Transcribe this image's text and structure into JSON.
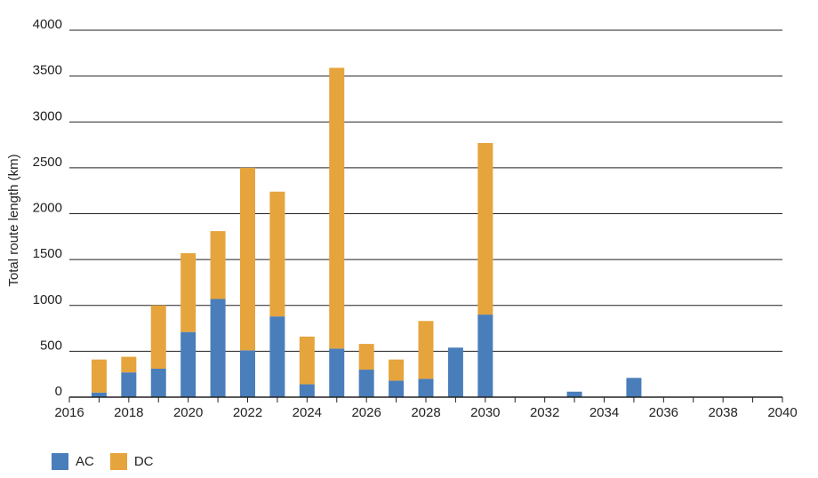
{
  "chart_data": {
    "type": "bar",
    "stacked": true,
    "title": "",
    "xlabel": "",
    "ylabel": "Total route length (km)",
    "x": [
      2017,
      2018,
      2019,
      2020,
      2021,
      2022,
      2023,
      2024,
      2025,
      2026,
      2027,
      2028,
      2029,
      2030,
      2033,
      2035
    ],
    "series": [
      {
        "name": "AC",
        "color": "#4a7ebb",
        "values": [
          50,
          270,
          310,
          710,
          1070,
          510,
          880,
          140,
          530,
          300,
          180,
          200,
          540,
          900,
          60,
          210
        ]
      },
      {
        "name": "DC",
        "color": "#e6a43c",
        "values": [
          360,
          170,
          690,
          860,
          740,
          1990,
          1360,
          520,
          3060,
          280,
          230,
          630,
          0,
          1870,
          0,
          0
        ]
      }
    ],
    "xlim": [
      2016,
      2040
    ],
    "xticks": [
      2016,
      2018,
      2020,
      2022,
      2024,
      2026,
      2028,
      2030,
      2032,
      2034,
      2036,
      2038,
      2040
    ],
    "ylim": [
      0,
      4000
    ],
    "yticks": [
      0,
      500,
      1000,
      1500,
      2000,
      2500,
      3000,
      3500,
      4000
    ],
    "grid": "horizontal",
    "legend_position": "bottom-left"
  }
}
